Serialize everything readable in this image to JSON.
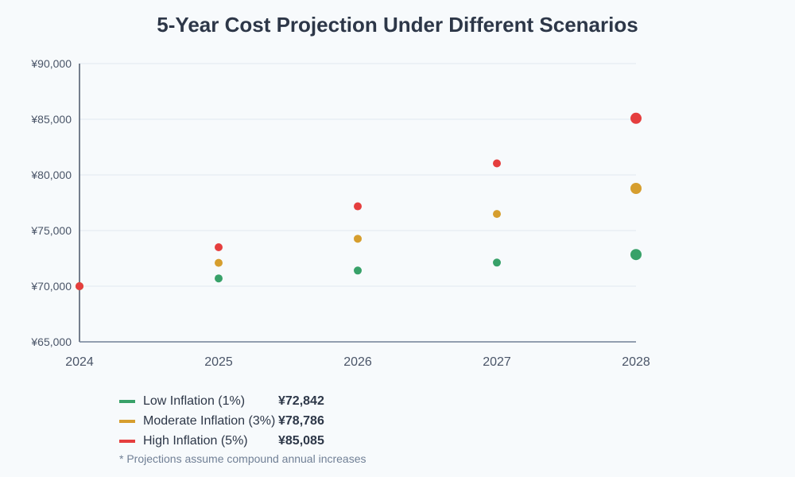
{
  "chart_data": {
    "type": "scatter",
    "title": "5-Year Cost Projection Under Different Scenarios",
    "x": [
      2024,
      2025,
      2026,
      2027,
      2028
    ],
    "ylim": [
      65000,
      90000
    ],
    "yticks": [
      "¥65,000",
      "¥70,000",
      "¥75,000",
      "¥80,000",
      "¥85,000",
      "¥90,000"
    ],
    "ytick_values": [
      65000,
      70000,
      75000,
      80000,
      85000,
      90000
    ],
    "xticks": [
      "2024",
      "2025",
      "2026",
      "2027",
      "2028"
    ],
    "grid": true,
    "legend_position": "bottom-left",
    "series": [
      {
        "name": "Low Inflation (1%)",
        "color": "#38a169",
        "values": [
          70000,
          70700,
          71407,
          72121,
          72842
        ],
        "final_label": "¥72,842"
      },
      {
        "name": "Moderate Inflation (3%)",
        "color": "#d69e2e",
        "values": [
          70000,
          72100,
          74263,
          76491,
          78786
        ],
        "final_label": "¥78,786"
      },
      {
        "name": "High Inflation (5%)",
        "color": "#e53e3e",
        "values": [
          70000,
          73500,
          77175,
          81034,
          85085
        ],
        "final_label": "¥85,085"
      }
    ],
    "note": "* Projections assume compound annual increases"
  }
}
